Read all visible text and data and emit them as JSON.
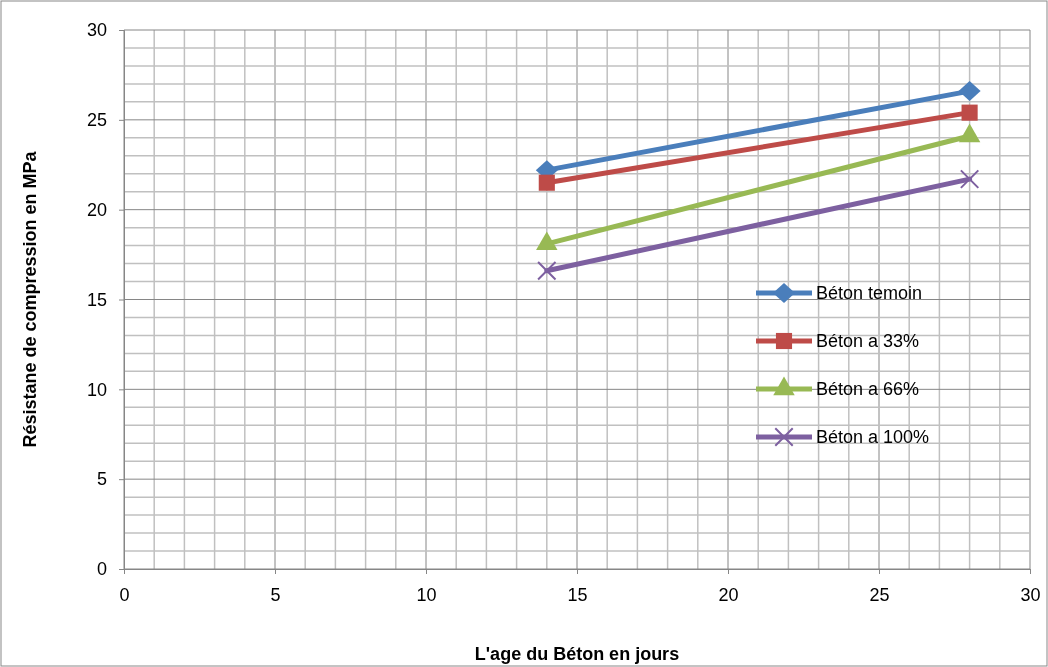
{
  "chart_data": {
    "type": "line",
    "xlabel": "L'age du Béton en jours",
    "ylabel": "Résistane  de compression en MPa",
    "xlim": [
      0,
      30
    ],
    "xticks": [
      0,
      5,
      10,
      15,
      20,
      25,
      30
    ],
    "ylim": [
      0,
      30
    ],
    "yticks": [
      0,
      5,
      10,
      15,
      20,
      25,
      30
    ],
    "grid": true,
    "legend": "right",
    "line_style": "solid",
    "x": [
      14,
      28
    ],
    "series": [
      {
        "name": "Béton temoin",
        "color": "#4a7ebb",
        "marker": "diamond",
        "values": [
          22.2,
          26.6
        ]
      },
      {
        "name": "Béton a 33%",
        "color": "#be4b48",
        "marker": "square",
        "values": [
          21.5,
          25.4
        ]
      },
      {
        "name": "Béton a 66%",
        "color": "#98b954",
        "marker": "triangle",
        "values": [
          18.1,
          24.1
        ]
      },
      {
        "name": "Béton a 100%",
        "color": "#7d60a0",
        "marker": "cross",
        "values": [
          16.6,
          21.7
        ]
      }
    ]
  }
}
